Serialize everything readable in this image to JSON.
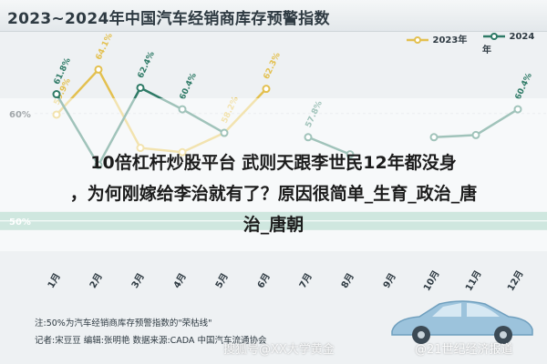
{
  "title": "2023~2024年中国汽车经销商库存预警指数",
  "overlay": {
    "line1": "10倍杠杆炒股平台 武则天跟李世民12年都没身",
    "line2": "，为何刚嫁给李治就有了？原因很简单_生育_政治_唐",
    "line3": "治_唐朝"
  },
  "footer": {
    "note": "注:50%为汽车经销商库存预警指数的\"荣枯线\"",
    "credits": "记者:宋豆豆   编辑:张明艳   数据来源:CADA 中国汽车流通协会"
  },
  "watermark": "搜狐号@XX大学黄金",
  "brand": "@21世纪经济报道",
  "colors": {
    "series_2023": "#e3c04f",
    "series_2024": "#2e7a66",
    "ref_band": "#4aa888"
  },
  "chart_data": {
    "type": "line",
    "title": "2023~2024年中国汽车经销商库存预警指数",
    "categories": [
      "1月",
      "2月",
      "3月",
      "4月",
      "5月",
      "6月",
      "7月",
      "8月",
      "9月",
      "10月",
      "11月",
      "12月"
    ],
    "series": [
      {
        "name": "2023年",
        "values": [
          59.9,
          64.1,
          56.8,
          56.4,
          58.2,
          62.3,
          null,
          null,
          null,
          null,
          null,
          null
        ]
      },
      {
        "name": "2024年",
        "values": [
          61.8,
          55.2,
          62.4,
          60.4,
          58.2,
          null,
          57.8,
          56.2,
          null,
          57.8,
          58.0,
          60.4
        ]
      }
    ],
    "point_labels": {
      "2023年": [
        "59.9%",
        "64.1%",
        "",
        "",
        "58.2%",
        "62.3%",
        "",
        "",
        "",
        "",
        "",
        ""
      ],
      "2024年": [
        "61.8%",
        "",
        "62.4%",
        "60.4%",
        "",
        "",
        "57.8%",
        "",
        "",
        "",
        "",
        "60.4%"
      ]
    },
    "y_ticks": [
      "50%",
      "60%"
    ],
    "reference_line": {
      "value": 50,
      "label": "50%"
    },
    "ylim": [
      46,
      66
    ],
    "legend": "top-right",
    "grid": true
  }
}
